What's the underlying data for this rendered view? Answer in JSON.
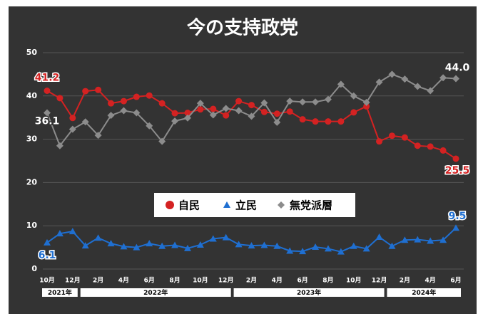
{
  "chart_data": {
    "type": "line",
    "title": "今の支持政党",
    "categories": [
      "10月",
      null,
      "12月",
      null,
      "2月",
      null,
      "4月",
      null,
      "6月",
      null,
      "8月",
      null,
      "10月",
      null,
      "12月",
      null,
      "2月",
      null,
      "4月",
      null,
      "6月",
      null,
      "8月",
      null,
      "10月",
      null,
      "12月",
      null,
      "2月",
      null,
      "4月",
      null,
      "6月"
    ],
    "years": [
      {
        "label": "2021年",
        "first": 0,
        "last": 2
      },
      {
        "label": "2022年",
        "first": 3,
        "last": 14
      },
      {
        "label": "2023年",
        "first": 15,
        "last": 26
      },
      {
        "label": "2024年",
        "first": 27,
        "last": 32
      }
    ],
    "series": [
      {
        "name": "自民",
        "color": "#d42222",
        "marker": "circle",
        "values": [
          41.2,
          39.5,
          34.9,
          41.1,
          41.4,
          38.3,
          38.8,
          39.8,
          40.1,
          38.3,
          36.0,
          36.1,
          36.9,
          37.0,
          35.5,
          38.8,
          37.9,
          36.3,
          35.9,
          36.4,
          34.6,
          34.1,
          34.1,
          34.1,
          36.2,
          37.6,
          29.5,
          30.8,
          30.4,
          28.5,
          28.3,
          27.4,
          25.5
        ],
        "value_labels": [
          "41.2",
          null,
          null,
          null,
          null,
          null,
          null,
          null,
          null,
          null,
          null,
          null,
          null,
          null,
          null,
          null,
          null,
          null,
          null,
          null,
          null,
          null,
          null,
          null,
          null,
          null,
          null,
          null,
          null,
          null,
          null,
          null,
          "25.5"
        ]
      },
      {
        "name": "立民",
        "color": "#1f6fd1",
        "marker": "triangle",
        "values": [
          6.1,
          8.2,
          8.7,
          5.4,
          7.2,
          5.9,
          5.2,
          5.0,
          5.9,
          5.3,
          5.5,
          4.8,
          5.6,
          7.0,
          7.3,
          5.7,
          5.4,
          5.5,
          5.3,
          4.2,
          4.1,
          5.1,
          4.7,
          4.0,
          5.3,
          4.7,
          7.4,
          5.3,
          6.7,
          6.8,
          6.5,
          6.7,
          9.5
        ],
        "value_labels": [
          "6.1",
          null,
          null,
          null,
          null,
          null,
          null,
          null,
          null,
          null,
          null,
          null,
          null,
          null,
          null,
          null,
          null,
          null,
          null,
          null,
          null,
          null,
          null,
          null,
          null,
          null,
          null,
          null,
          null,
          null,
          null,
          null,
          "9.5"
        ]
      },
      {
        "name": "無党派層",
        "color": "#8c8c8c",
        "marker": "diamond",
        "values": [
          36.1,
          28.5,
          32.3,
          34.0,
          30.9,
          35.5,
          36.6,
          36.1,
          33.1,
          29.5,
          34.2,
          34.9,
          38.3,
          35.6,
          37.1,
          36.6,
          35.3,
          38.4,
          33.9,
          38.8,
          38.6,
          38.6,
          39.2,
          42.7,
          40.0,
          38.5,
          43.2,
          45.0,
          43.9,
          42.2,
          41.2,
          44.2,
          44.0
        ],
        "value_labels": [
          "36.1",
          null,
          null,
          null,
          null,
          null,
          null,
          null,
          null,
          null,
          null,
          null,
          null,
          null,
          null,
          null,
          null,
          null,
          null,
          null,
          null,
          null,
          null,
          null,
          null,
          null,
          null,
          null,
          null,
          null,
          null,
          null,
          "44.0"
        ]
      }
    ],
    "ylim": [
      0,
      50
    ],
    "yticks": [
      0,
      10,
      20,
      30,
      40,
      50
    ],
    "grid": true,
    "legend": "center"
  }
}
